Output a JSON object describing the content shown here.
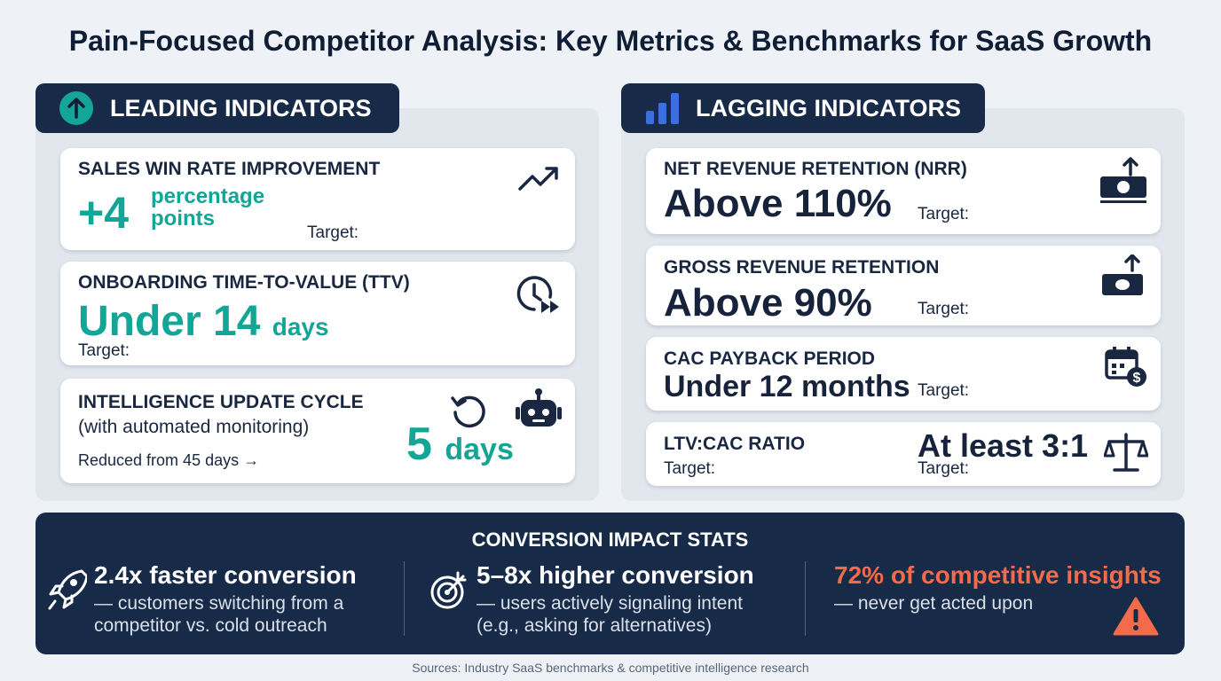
{
  "title": "Pain-Focused Competitor Analysis: Key Metrics & Benchmarks for SaaS Growth",
  "leading": {
    "header": "LEADING INDICATORS",
    "cards": [
      {
        "label": "SALES WIN RATE IMPROVEMENT",
        "value": "+4",
        "unit": "percentage points",
        "target": "Target:"
      },
      {
        "label": "ONBOARDING TIME-TO-VALUE (TTV)",
        "value": "Under 14",
        "unit": "days",
        "target": "Target:"
      },
      {
        "label": "INTELLIGENCE UPDATE CYCLE",
        "sublabel": "(with automated monitoring)",
        "note": "Reduced from 45 days →",
        "value": "5",
        "unit": "days"
      }
    ]
  },
  "lagging": {
    "header": "LAGGING INDICATORS",
    "cards": [
      {
        "label": "NET REVENUE RETENTION (NRR)",
        "value": "Above 110%",
        "target": "Target:"
      },
      {
        "label": "GROSS REVENUE RETENTION",
        "value": "Above 90%",
        "target": "Target:"
      },
      {
        "label": "CAC PAYBACK PERIOD",
        "value": "Under 12 months",
        "target": "Target:"
      },
      {
        "label": "LTV:CAC RATIO",
        "value": "At least 3:1",
        "targets": [
          "Target:",
          "Target:"
        ]
      }
    ]
  },
  "conversion": {
    "title": "CONVERSION IMPACT STATS",
    "stats": [
      {
        "headline": "2.4x faster conversion",
        "detail": "— customers switching from a competitor vs. cold outreach"
      },
      {
        "headline": "5–8x higher conversion",
        "detail": "— users actively signaling intent (e.g., asking for alternatives)"
      },
      {
        "headline": "72% of competitive insights",
        "detail": "— never get acted upon"
      }
    ]
  },
  "sources": "Sources: Industry SaaS benchmarks & competitive intelligence research"
}
